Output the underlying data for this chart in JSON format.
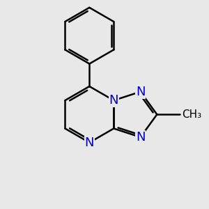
{
  "bg_color": "#e8e8e8",
  "bond_color": "#000000",
  "n_color": "#0000cc",
  "bond_width": 1.8,
  "font_size_N": 13,
  "font_size_methyl": 11,
  "figsize": [
    3.0,
    3.0
  ],
  "dpi": 100,
  "xlim": [
    0,
    1
  ],
  "ylim": [
    0,
    1
  ]
}
